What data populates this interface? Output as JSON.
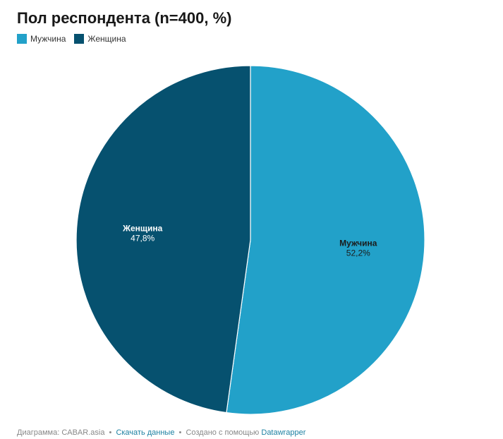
{
  "title": "Пол респондента (n=400, %)",
  "legend": [
    {
      "label": "Мужчина",
      "color": "#22a1c9"
    },
    {
      "label": "Женщина",
      "color": "#06516f"
    }
  ],
  "chart_data": {
    "type": "pie",
    "title": "Пол респондента (n=400, %)",
    "categories": [
      "Мужчина",
      "Женщина"
    ],
    "values": [
      52.2,
      47.8
    ],
    "value_labels": [
      "52,2%",
      "47,8%"
    ],
    "colors": [
      "#22a1c9",
      "#06516f"
    ],
    "label_colors": [
      "#1b1b1b",
      "#ffffff"
    ],
    "start": "12 o'clock",
    "direction": "clockwise",
    "legend_position": "top-left"
  },
  "footer": {
    "prefix": "Диаграмма: CABAR.asia",
    "separator": "•",
    "download_link": "Скачать данные",
    "created_with": "Создано с помощью",
    "tool_link": "Datawrapper"
  }
}
